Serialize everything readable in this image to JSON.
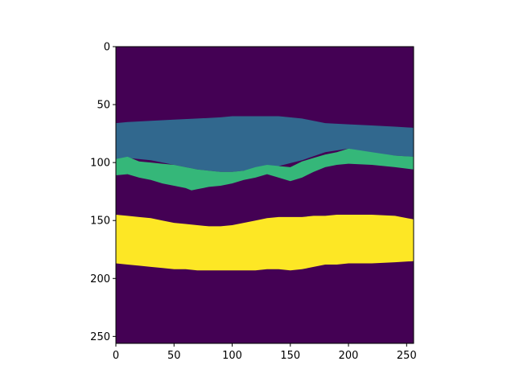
{
  "chart_data": {
    "type": "heatmap",
    "title": "",
    "xlabel": "",
    "ylabel": "",
    "xlim": [
      0,
      256
    ],
    "ylim": [
      256,
      0
    ],
    "x_ticks": [
      0,
      50,
      100,
      150,
      200,
      250
    ],
    "y_ticks": [
      0,
      50,
      100,
      150,
      200,
      250
    ],
    "x_tick_labels": [
      "0",
      "50",
      "100",
      "150",
      "200",
      "250"
    ],
    "y_tick_labels": [
      "0",
      "50",
      "100",
      "150",
      "200",
      "250"
    ],
    "grid": false,
    "colormap": "viridis",
    "class_colors": {
      "0": "#440154",
      "1": "#31688e",
      "2": "#35b779",
      "3": "#fde725"
    },
    "regions": [
      {
        "class": 1,
        "description_rows": "band between top and bottom boundary per column",
        "x": [
          0,
          10,
          30,
          50,
          70,
          90,
          100,
          120,
          140,
          160,
          180,
          200,
          220,
          240,
          256
        ],
        "top": [
          66,
          65,
          64,
          63,
          62,
          61,
          60,
          60,
          60,
          62,
          66,
          67,
          68,
          69,
          70
        ],
        "bottom": [
          97,
          96,
          98,
          102,
          106,
          108,
          108,
          106,
          103,
          98,
          91,
          88,
          92,
          94,
          95
        ]
      },
      {
        "class": 2,
        "x": [
          0,
          10,
          20,
          30,
          40,
          50,
          60,
          65,
          70,
          80,
          90,
          100,
          110,
          120,
          130,
          140,
          150,
          160,
          170,
          180,
          190,
          200,
          220,
          240,
          256
        ],
        "top": [
          97,
          95,
          99,
          100,
          101,
          102,
          104,
          105,
          106,
          107,
          108,
          108,
          107,
          104,
          102,
          103,
          104,
          99,
          96,
          93,
          91,
          88,
          91,
          94,
          95
        ],
        "bottom": [
          111,
          110,
          113,
          115,
          118,
          120,
          122,
          124,
          123,
          121,
          120,
          118,
          115,
          113,
          110,
          113,
          116,
          113,
          108,
          104,
          102,
          101,
          102,
          104,
          106
        ]
      },
      {
        "class": 3,
        "x": [
          0,
          10,
          20,
          30,
          40,
          50,
          60,
          70,
          80,
          90,
          100,
          110,
          120,
          130,
          140,
          150,
          160,
          170,
          180,
          190,
          200,
          220,
          240,
          256
        ],
        "top": [
          145,
          146,
          147,
          148,
          150,
          152,
          153,
          154,
          155,
          155,
          154,
          152,
          150,
          148,
          147,
          147,
          147,
          146,
          146,
          145,
          145,
          145,
          146,
          149
        ],
        "bottom": [
          187,
          188,
          189,
          190,
          191,
          192,
          192,
          193,
          193,
          193,
          193,
          193,
          193,
          192,
          192,
          193,
          192,
          190,
          188,
          188,
          187,
          187,
          186,
          185
        ]
      }
    ]
  }
}
